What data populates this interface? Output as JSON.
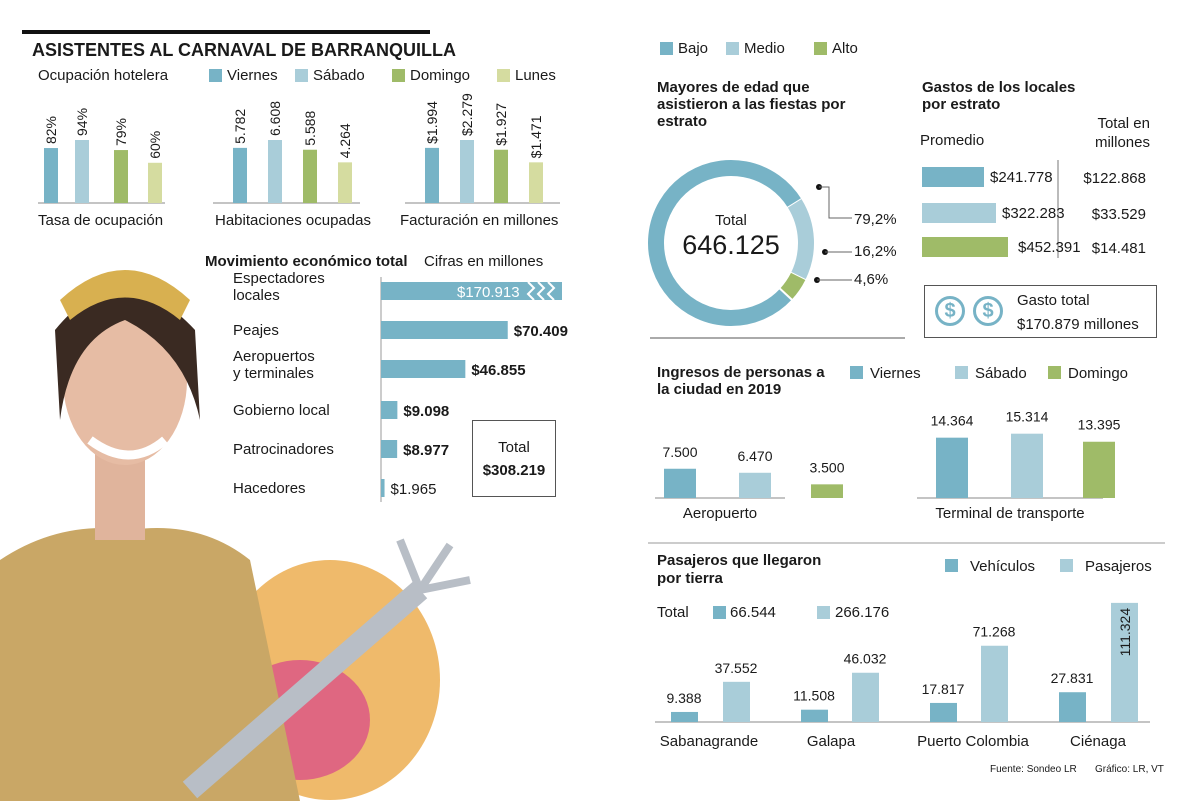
{
  "title": "ASISTENTES AL CARNAVAL DE BARRANQUILLA",
  "colors": {
    "viernes": "#77b3c6",
    "sabado": "#a9cdd9",
    "domingo": "#9fbb68",
    "lunes": "#d5dca0",
    "bajo": "#77b3c6",
    "medio": "#a9cdd9",
    "alto": "#9fbb68"
  },
  "hotel": {
    "heading": "Ocupación hotelera",
    "legend": [
      "Viernes",
      "Sábado",
      "Domingo",
      "Lunes"
    ]
  },
  "chart_data": [
    {
      "type": "bar",
      "xlabel": "Tasa de ocupación",
      "categories": [
        "Viernes",
        "Sábado",
        "Domingo",
        "Lunes"
      ],
      "values": [
        82,
        94,
        79,
        60
      ],
      "labels": [
        "82%",
        "94%",
        "79%",
        "60%"
      ]
    },
    {
      "type": "bar",
      "xlabel": "Habitaciones ocupadas",
      "categories": [
        "Viernes",
        "Sábado",
        "Domingo",
        "Lunes"
      ],
      "values": [
        5782,
        6608,
        5588,
        4264
      ],
      "labels": [
        "5.782",
        "6.608",
        "5.588",
        "4.264"
      ]
    },
    {
      "type": "bar",
      "xlabel": "Facturación en millones",
      "categories": [
        "Viernes",
        "Sábado",
        "Domingo",
        "Lunes"
      ],
      "values": [
        1994,
        2279,
        1927,
        1471
      ],
      "labels": [
        "$1.994",
        "$2.279",
        "$1.927",
        "$1.471"
      ]
    },
    {
      "type": "bar",
      "orientation": "horizontal",
      "title": "Movimiento económico total",
      "subtitle": "Cifras en millones",
      "categories": [
        "Espectadores locales",
        "Peajes",
        "Aeropuertos y terminales",
        "Gobierno local",
        "Patrocinadores",
        "Hacedores"
      ],
      "values": [
        170913,
        70409,
        46855,
        9098,
        8977,
        1965
      ],
      "labels": [
        "$170.913",
        "$70.409",
        "$46.855",
        "$9.098",
        "$8.977",
        "$1.965"
      ],
      "total_label": "Total",
      "total": "$308.219"
    },
    {
      "type": "pie",
      "title": "Mayores de edad que asistieron a las fiestas por estrato",
      "categories": [
        "Bajo",
        "Medio",
        "Alto"
      ],
      "values": [
        79.2,
        16.2,
        4.6
      ],
      "labels": [
        "79,2%",
        "16,2%",
        "4,6%"
      ],
      "center_label": "Total",
      "center_value": "646.125"
    },
    {
      "type": "bar",
      "orientation": "horizontal",
      "title": "Gastos de los locales por estrato",
      "col1": "Promedio",
      "col2": "Total en millones",
      "categories": [
        "Bajo",
        "Medio",
        "Alto"
      ],
      "values": [
        241778,
        322283,
        452391
      ],
      "labels": [
        "$241.778",
        "$322.283",
        "$452.391"
      ],
      "totals": [
        "$122.868",
        "$33.529",
        "$14.481"
      ],
      "gasto_total_label": "Gasto total",
      "gasto_total": "$170.879 millones"
    },
    {
      "type": "bar",
      "title": "Ingresos de personas a la ciudad en 2019",
      "legend": [
        "Viernes",
        "Sábado",
        "Domingo"
      ],
      "groups": [
        {
          "name": "Aeropuerto",
          "values": [
            7500,
            6470,
            3500
          ],
          "labels": [
            "7.500",
            "6.470",
            "3.500"
          ]
        },
        {
          "name": "Terminal de transporte",
          "values": [
            14364,
            15314,
            13395
          ],
          "labels": [
            "14.364",
            "15.314",
            "13.395"
          ]
        }
      ]
    },
    {
      "type": "bar",
      "title": "Pasajeros que llegaron por tierra",
      "legend": [
        "Vehículos",
        "Pasajeros"
      ],
      "total_label": "Total",
      "totals": [
        "66.544",
        "266.176"
      ],
      "categories": [
        "Sabanagrande",
        "Galapa",
        "Puerto Colombia",
        "Ciénaga"
      ],
      "series": [
        {
          "name": "Vehículos",
          "values": [
            9388,
            11508,
            17817,
            27831
          ],
          "labels": [
            "9.388",
            "11.508",
            "17.817",
            "27.831"
          ]
        },
        {
          "name": "Pasajeros",
          "values": [
            37552,
            46032,
            71268,
            111324
          ],
          "labels": [
            "37.552",
            "46.032",
            "71.268",
            "111.324"
          ]
        }
      ]
    }
  ],
  "footer": {
    "source": "Fuente: Sondeo LR",
    "credit": "Gráfico: LR, VT"
  }
}
